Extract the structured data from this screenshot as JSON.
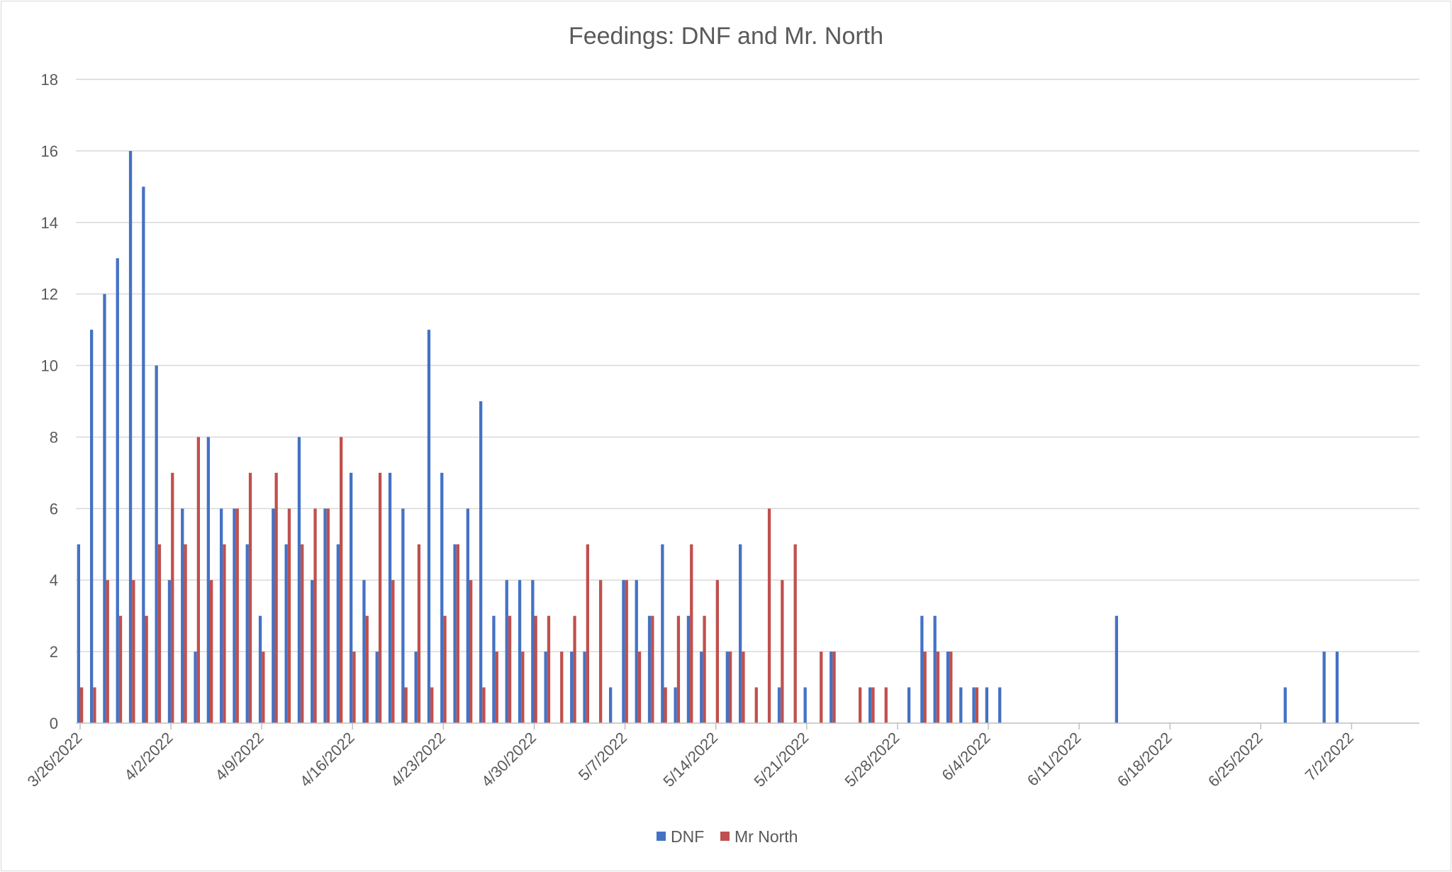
{
  "chart_data": {
    "type": "bar",
    "title": "Feedings: DNF and Mr. North",
    "x_start": "2022-03-26",
    "x_end": "2022-07-08",
    "ylim": [
      0,
      18
    ],
    "yticks": [
      0,
      2,
      4,
      6,
      8,
      10,
      12,
      14,
      16,
      18
    ],
    "xticks": [
      "3/26/2022",
      "4/2/2022",
      "4/9/2022",
      "4/16/2022",
      "4/23/2022",
      "4/30/2022",
      "5/7/2022",
      "5/14/2022",
      "5/21/2022",
      "5/28/2022",
      "6/4/2022",
      "6/11/2022",
      "6/18/2022",
      "6/25/2022",
      "7/2/2022"
    ],
    "grid": true,
    "legend_position": "bottom",
    "series": [
      {
        "name": "DNF",
        "color": "#4472c4",
        "points": [
          {
            "x": "2022-03-26",
            "y": 5
          },
          {
            "x": "2022-03-27",
            "y": 11
          },
          {
            "x": "2022-03-28",
            "y": 12
          },
          {
            "x": "2022-03-29",
            "y": 13
          },
          {
            "x": "2022-03-30",
            "y": 16
          },
          {
            "x": "2022-03-31",
            "y": 15
          },
          {
            "x": "2022-04-01",
            "y": 10
          },
          {
            "x": "2022-04-02",
            "y": 4
          },
          {
            "x": "2022-04-03",
            "y": 6
          },
          {
            "x": "2022-04-04",
            "y": 2
          },
          {
            "x": "2022-04-05",
            "y": 8
          },
          {
            "x": "2022-04-06",
            "y": 6
          },
          {
            "x": "2022-04-07",
            "y": 6
          },
          {
            "x": "2022-04-08",
            "y": 5
          },
          {
            "x": "2022-04-09",
            "y": 3
          },
          {
            "x": "2022-04-10",
            "y": 6
          },
          {
            "x": "2022-04-11",
            "y": 5
          },
          {
            "x": "2022-04-12",
            "y": 8
          },
          {
            "x": "2022-04-13",
            "y": 4
          },
          {
            "x": "2022-04-14",
            "y": 6
          },
          {
            "x": "2022-04-15",
            "y": 5
          },
          {
            "x": "2022-04-16",
            "y": 7
          },
          {
            "x": "2022-04-17",
            "y": 4
          },
          {
            "x": "2022-04-18",
            "y": 2
          },
          {
            "x": "2022-04-19",
            "y": 7
          },
          {
            "x": "2022-04-20",
            "y": 6
          },
          {
            "x": "2022-04-21",
            "y": 2
          },
          {
            "x": "2022-04-22",
            "y": 11
          },
          {
            "x": "2022-04-23",
            "y": 7
          },
          {
            "x": "2022-04-24",
            "y": 5
          },
          {
            "x": "2022-04-25",
            "y": 6
          },
          {
            "x": "2022-04-26",
            "y": 9
          },
          {
            "x": "2022-04-27",
            "y": 3
          },
          {
            "x": "2022-04-28",
            "y": 4
          },
          {
            "x": "2022-04-29",
            "y": 4
          },
          {
            "x": "2022-04-30",
            "y": 4
          },
          {
            "x": "2022-05-01",
            "y": 2
          },
          {
            "x": "2022-05-03",
            "y": 2
          },
          {
            "x": "2022-05-04",
            "y": 2
          },
          {
            "x": "2022-05-06",
            "y": 1
          },
          {
            "x": "2022-05-07",
            "y": 4
          },
          {
            "x": "2022-05-08",
            "y": 4
          },
          {
            "x": "2022-05-09",
            "y": 3
          },
          {
            "x": "2022-05-10",
            "y": 5
          },
          {
            "x": "2022-05-11",
            "y": 1
          },
          {
            "x": "2022-05-12",
            "y": 3
          },
          {
            "x": "2022-05-13",
            "y": 2
          },
          {
            "x": "2022-05-15",
            "y": 2
          },
          {
            "x": "2022-05-16",
            "y": 5
          },
          {
            "x": "2022-05-19",
            "y": 1
          },
          {
            "x": "2022-05-21",
            "y": 1
          },
          {
            "x": "2022-05-23",
            "y": 2
          },
          {
            "x": "2022-05-26",
            "y": 1
          },
          {
            "x": "2022-05-29",
            "y": 1
          },
          {
            "x": "2022-05-30",
            "y": 3
          },
          {
            "x": "2022-05-31",
            "y": 3
          },
          {
            "x": "2022-06-01",
            "y": 2
          },
          {
            "x": "2022-06-02",
            "y": 1
          },
          {
            "x": "2022-06-03",
            "y": 1
          },
          {
            "x": "2022-06-04",
            "y": 1
          },
          {
            "x": "2022-06-05",
            "y": 1
          },
          {
            "x": "2022-06-14",
            "y": 3
          },
          {
            "x": "2022-06-27",
            "y": 1
          },
          {
            "x": "2022-06-30",
            "y": 2
          },
          {
            "x": "2022-07-01",
            "y": 2
          }
        ]
      },
      {
        "name": "Mr North",
        "color": "#c0504d",
        "points": [
          {
            "x": "2022-03-26",
            "y": 1
          },
          {
            "x": "2022-03-27",
            "y": 1
          },
          {
            "x": "2022-03-28",
            "y": 4
          },
          {
            "x": "2022-03-29",
            "y": 3
          },
          {
            "x": "2022-03-30",
            "y": 4
          },
          {
            "x": "2022-03-31",
            "y": 3
          },
          {
            "x": "2022-04-01",
            "y": 5
          },
          {
            "x": "2022-04-02",
            "y": 7
          },
          {
            "x": "2022-04-03",
            "y": 5
          },
          {
            "x": "2022-04-04",
            "y": 8
          },
          {
            "x": "2022-04-05",
            "y": 4
          },
          {
            "x": "2022-04-06",
            "y": 5
          },
          {
            "x": "2022-04-07",
            "y": 6
          },
          {
            "x": "2022-04-08",
            "y": 7
          },
          {
            "x": "2022-04-09",
            "y": 2
          },
          {
            "x": "2022-04-10",
            "y": 7
          },
          {
            "x": "2022-04-11",
            "y": 6
          },
          {
            "x": "2022-04-12",
            "y": 5
          },
          {
            "x": "2022-04-13",
            "y": 6
          },
          {
            "x": "2022-04-14",
            "y": 6
          },
          {
            "x": "2022-04-15",
            "y": 8
          },
          {
            "x": "2022-04-16",
            "y": 2
          },
          {
            "x": "2022-04-17",
            "y": 3
          },
          {
            "x": "2022-04-18",
            "y": 7
          },
          {
            "x": "2022-04-19",
            "y": 4
          },
          {
            "x": "2022-04-20",
            "y": 1
          },
          {
            "x": "2022-04-21",
            "y": 5
          },
          {
            "x": "2022-04-22",
            "y": 1
          },
          {
            "x": "2022-04-23",
            "y": 3
          },
          {
            "x": "2022-04-24",
            "y": 5
          },
          {
            "x": "2022-04-25",
            "y": 4
          },
          {
            "x": "2022-04-26",
            "y": 1
          },
          {
            "x": "2022-04-27",
            "y": 2
          },
          {
            "x": "2022-04-28",
            "y": 3
          },
          {
            "x": "2022-04-29",
            "y": 2
          },
          {
            "x": "2022-04-30",
            "y": 3
          },
          {
            "x": "2022-05-01",
            "y": 3
          },
          {
            "x": "2022-05-02",
            "y": 2
          },
          {
            "x": "2022-05-03",
            "y": 3
          },
          {
            "x": "2022-05-04",
            "y": 5
          },
          {
            "x": "2022-05-05",
            "y": 4
          },
          {
            "x": "2022-05-07",
            "y": 4
          },
          {
            "x": "2022-05-08",
            "y": 2
          },
          {
            "x": "2022-05-09",
            "y": 3
          },
          {
            "x": "2022-05-10",
            "y": 1
          },
          {
            "x": "2022-05-11",
            "y": 3
          },
          {
            "x": "2022-05-12",
            "y": 5
          },
          {
            "x": "2022-05-13",
            "y": 3
          },
          {
            "x": "2022-05-14",
            "y": 4
          },
          {
            "x": "2022-05-15",
            "y": 2
          },
          {
            "x": "2022-05-16",
            "y": 2
          },
          {
            "x": "2022-05-17",
            "y": 1
          },
          {
            "x": "2022-05-18",
            "y": 6
          },
          {
            "x": "2022-05-19",
            "y": 4
          },
          {
            "x": "2022-05-20",
            "y": 5
          },
          {
            "x": "2022-05-22",
            "y": 2
          },
          {
            "x": "2022-05-23",
            "y": 2
          },
          {
            "x": "2022-05-25",
            "y": 1
          },
          {
            "x": "2022-05-26",
            "y": 1
          },
          {
            "x": "2022-05-27",
            "y": 1
          },
          {
            "x": "2022-05-30",
            "y": 2
          },
          {
            "x": "2022-05-31",
            "y": 2
          },
          {
            "x": "2022-06-01",
            "y": 2
          },
          {
            "x": "2022-06-03",
            "y": 1
          }
        ]
      }
    ]
  }
}
